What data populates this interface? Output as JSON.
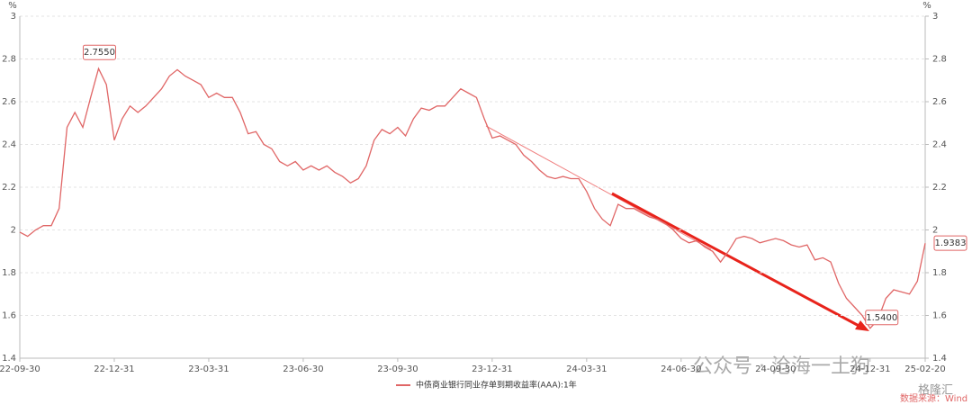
{
  "chart_data": {
    "type": "line",
    "unit_left": "%",
    "unit_right": "%",
    "watermark": "公众号 · 沧海一土狗",
    "source": "数据来源：Wind",
    "brand": "格隆汇",
    "ylim": [
      1.4,
      3
    ],
    "yticks": [
      1.4,
      1.6,
      1.8,
      2,
      2.2,
      2.4,
      2.6,
      2.8,
      3
    ],
    "y2lim": [
      1.4,
      3
    ],
    "y2ticks": [
      1.4,
      1.6,
      1.8,
      2,
      2.2,
      2.4,
      2.6,
      2.8,
      3
    ],
    "grid": true,
    "categories": [
      "22-09-30",
      null,
      null,
      null,
      null,
      null,
      null,
      null,
      null,
      null,
      null,
      null,
      "22-12-31",
      null,
      null,
      null,
      null,
      null,
      null,
      null,
      null,
      null,
      null,
      null,
      "23-03-31",
      null,
      null,
      null,
      null,
      null,
      null,
      null,
      null,
      null,
      null,
      null,
      "23-06-30",
      null,
      null,
      null,
      null,
      null,
      null,
      null,
      null,
      null,
      null,
      null,
      "23-09-30",
      null,
      null,
      null,
      null,
      null,
      null,
      null,
      null,
      null,
      null,
      null,
      "23-12-31",
      null,
      null,
      null,
      null,
      null,
      null,
      null,
      null,
      null,
      null,
      null,
      "24-03-31",
      null,
      null,
      null,
      null,
      null,
      null,
      null,
      null,
      null,
      null,
      null,
      "24-06-30",
      null,
      null,
      null,
      null,
      null,
      null,
      null,
      null,
      null,
      null,
      null,
      "24-09-30",
      null,
      null,
      null,
      null,
      null,
      null,
      null,
      null,
      null,
      null,
      null,
      "24-12-31",
      null,
      null,
      null,
      null,
      null,
      null,
      "25-02-20"
    ],
    "series": [
      {
        "name": "中债商业银行同业存单到期收益率(AAA):1年",
        "color": "#e06666",
        "values": [
          1.99,
          1.97,
          2.0,
          2.02,
          2.02,
          2.1,
          2.48,
          2.55,
          2.48,
          2.62,
          2.755,
          2.68,
          2.42,
          2.52,
          2.58,
          2.55,
          2.58,
          2.62,
          2.66,
          2.72,
          2.75,
          2.72,
          2.7,
          2.68,
          2.62,
          2.64,
          2.62,
          2.62,
          2.55,
          2.45,
          2.46,
          2.4,
          2.38,
          2.32,
          2.3,
          2.32,
          2.28,
          2.3,
          2.28,
          2.3,
          2.27,
          2.25,
          2.22,
          2.24,
          2.3,
          2.42,
          2.47,
          2.45,
          2.48,
          2.44,
          2.52,
          2.57,
          2.56,
          2.58,
          2.58,
          2.62,
          2.66,
          2.64,
          2.62,
          2.52,
          2.43,
          2.44,
          2.42,
          2.4,
          2.35,
          2.32,
          2.28,
          2.25,
          2.24,
          2.25,
          2.24,
          2.24,
          2.18,
          2.1,
          2.05,
          2.02,
          2.12,
          2.1,
          2.1,
          2.08,
          2.06,
          2.05,
          2.03,
          2.0,
          1.96,
          1.94,
          1.95,
          1.92,
          1.9,
          1.85,
          1.9,
          1.96,
          1.97,
          1.96,
          1.94,
          1.95,
          1.96,
          1.95,
          1.93,
          1.92,
          1.93,
          1.86,
          1.87,
          1.85,
          1.75,
          1.68,
          1.64,
          1.6,
          1.54,
          1.58,
          1.68,
          1.72,
          1.71,
          1.7,
          1.76,
          1.9383
        ],
        "value_labels": [
          null,
          null,
          null,
          null,
          null,
          null,
          null,
          null,
          null,
          null,
          "2.7550",
          null,
          null,
          null,
          null,
          null,
          null,
          null,
          null,
          null,
          null,
          null,
          null,
          null,
          null,
          null,
          null,
          null,
          null,
          null,
          null,
          null,
          null,
          null,
          null,
          null,
          null,
          null,
          null,
          null,
          null,
          null,
          null,
          null,
          null,
          null,
          null,
          null,
          null,
          null,
          null,
          null,
          null,
          null,
          null,
          null,
          null,
          null,
          null,
          null,
          null,
          null,
          null,
          null,
          null,
          null,
          null,
          null,
          null,
          null,
          null,
          null,
          null,
          null,
          null,
          null,
          null,
          null,
          null,
          null,
          null,
          null,
          null,
          null,
          null,
          null,
          null,
          null,
          null,
          null,
          null,
          null,
          null,
          null,
          null,
          null,
          null,
          null,
          null,
          null,
          null,
          null,
          null,
          null,
          null,
          null,
          null,
          null,
          "1.5400",
          null,
          null,
          null,
          null,
          null,
          null,
          "1.9383"
        ]
      }
    ]
  }
}
